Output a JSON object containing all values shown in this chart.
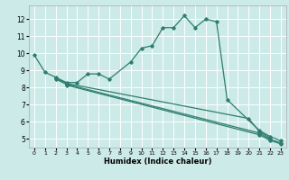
{
  "xlabel": "Humidex (Indice chaleur)",
  "xlim": [
    -0.5,
    23.5
  ],
  "ylim": [
    4.5,
    12.8
  ],
  "yticks": [
    5,
    6,
    7,
    8,
    9,
    10,
    11,
    12
  ],
  "xticks": [
    0,
    1,
    2,
    3,
    4,
    5,
    6,
    7,
    8,
    9,
    10,
    11,
    12,
    13,
    14,
    15,
    16,
    17,
    18,
    19,
    20,
    21,
    22,
    23
  ],
  "bg_color": "#cceae8",
  "grid_color": "#ffffff",
  "line_color": "#2e7d6e",
  "curve1_x": [
    0,
    1,
    2,
    3,
    4,
    5,
    6,
    7,
    9,
    10,
    11,
    12,
    13,
    14,
    15,
    16,
    17,
    18,
    21,
    22,
    23
  ],
  "curve1_y": [
    9.9,
    8.9,
    8.6,
    8.3,
    8.3,
    8.8,
    8.8,
    8.5,
    9.5,
    10.3,
    10.45,
    11.5,
    11.5,
    12.2,
    11.5,
    12.0,
    11.85,
    7.3,
    5.5,
    5.15,
    4.9
  ],
  "curve2_x": [
    2,
    3,
    20,
    21,
    22
  ],
  "curve2_y": [
    8.55,
    8.25,
    6.2,
    5.45,
    5.05
  ],
  "curve3_x": [
    2,
    3,
    21,
    22,
    23
  ],
  "curve3_y": [
    8.5,
    8.2,
    5.35,
    4.98,
    4.78
  ],
  "curve4_x": [
    3,
    21,
    22,
    23
  ],
  "curve4_y": [
    8.15,
    5.25,
    4.92,
    4.72
  ],
  "tick_labelsize": 5,
  "xlabel_fontsize": 6,
  "lw": 0.9,
  "ms": 1.8
}
